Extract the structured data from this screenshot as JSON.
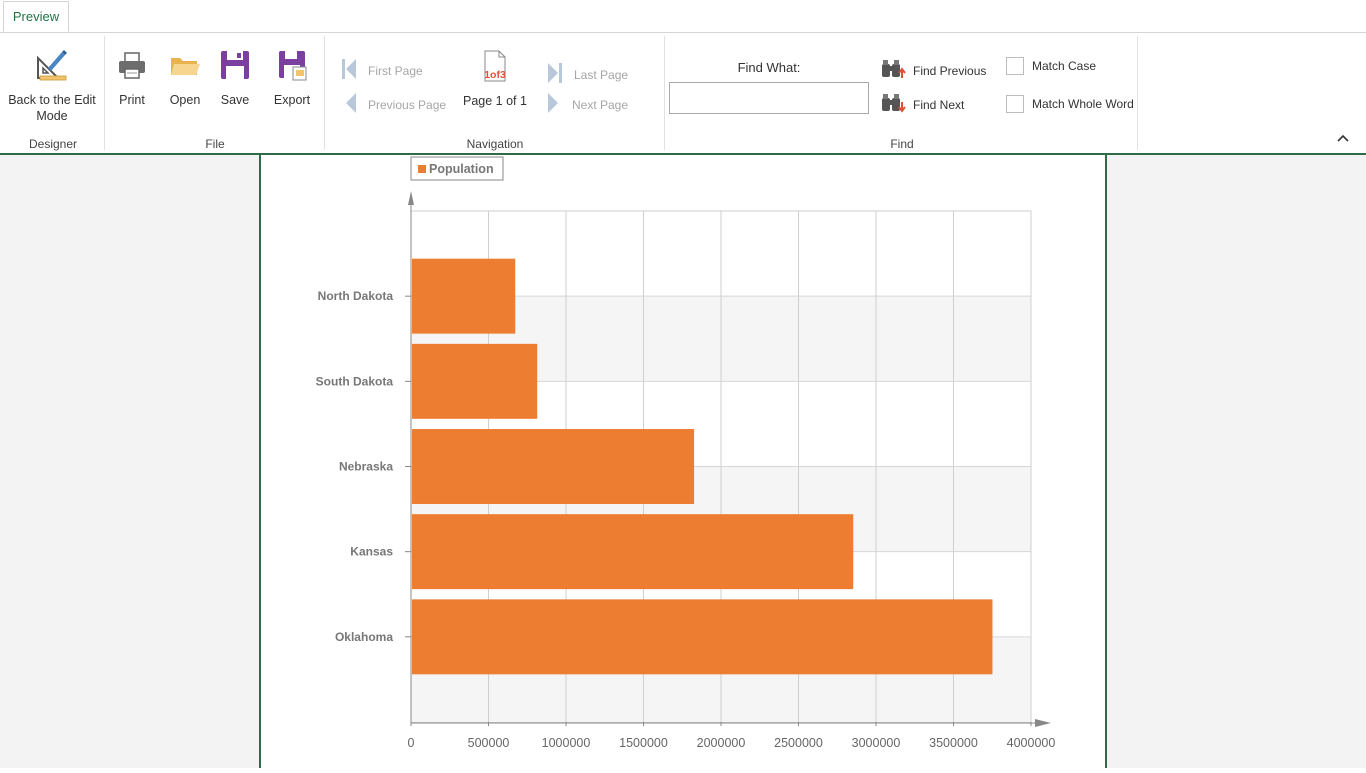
{
  "tabs": [
    {
      "label": "Preview",
      "active": true
    }
  ],
  "groups": {
    "designer": {
      "label": "Designer",
      "back_button": "Back to the Edit Mode",
      "back_button_line1": "Back to the Edit",
      "back_button_line2": "Mode"
    },
    "file": {
      "label": "File",
      "print": "Print",
      "open": "Open",
      "save": "Save",
      "export": "Export"
    },
    "navigation": {
      "label": "Navigation",
      "first_page": "First Page",
      "previous_page": "Previous Page",
      "page_indicator_icon_text": "1of3",
      "page_info": "Page 1 of 1",
      "last_page": "Last Page",
      "next_page": "Next Page"
    },
    "find": {
      "label": "Find",
      "find_what": "Find What:",
      "find_value": "",
      "find_previous": "Find Previous",
      "find_next": "Find Next",
      "match_case": "Match Case",
      "match_whole_word": "Match Whole Word",
      "match_case_checked": false,
      "match_whole_word_checked": false
    }
  },
  "colors": {
    "accent": "#217346",
    "border_green": "#2e6b47",
    "bar": "#ed7d31",
    "icon_purple": "#7b3fa0",
    "icon_folder": "#f2c46d"
  },
  "chart_data": {
    "type": "bar",
    "orientation": "horizontal",
    "categories": [
      "North Dakota",
      "South Dakota",
      "Nebraska",
      "Kansas",
      "Oklahoma"
    ],
    "series": [
      {
        "name": "Population",
        "values": [
          672591,
          814180,
          1826341,
          2853118,
          3751351
        ]
      }
    ],
    "xlim": [
      0,
      4000000
    ],
    "xticks": [
      "0",
      "500000",
      "1000000",
      "1500000",
      "2000000",
      "2500000",
      "3000000",
      "3500000",
      "4000000"
    ],
    "grid": true,
    "legend": "top-left"
  }
}
